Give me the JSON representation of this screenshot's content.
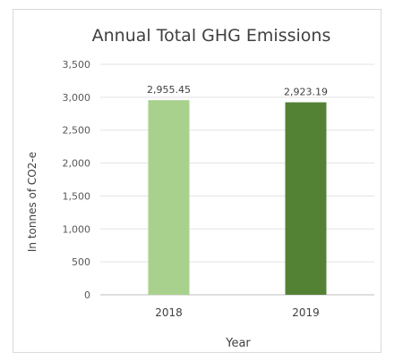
{
  "chart_data": {
    "type": "bar",
    "title": "Annual Total GHG Emissions",
    "xlabel": "Year",
    "ylabel": "In tonnes of CO2-e",
    "categories": [
      "2018",
      "2019"
    ],
    "values": [
      2955.45,
      2923.19
    ],
    "data_labels": [
      "2,955.45",
      "2,923.19"
    ],
    "bar_colors": [
      "#a9d18e",
      "#548235"
    ],
    "ylim": [
      0,
      3500
    ],
    "yticks": [
      0,
      500,
      1000,
      1500,
      2000,
      2500,
      3000,
      3500
    ],
    "ytick_labels": [
      "0",
      "500",
      "1,000",
      "1,500",
      "2,000",
      "2,500",
      "3,000",
      "3,500"
    ],
    "grid": true,
    "legend": "none"
  }
}
